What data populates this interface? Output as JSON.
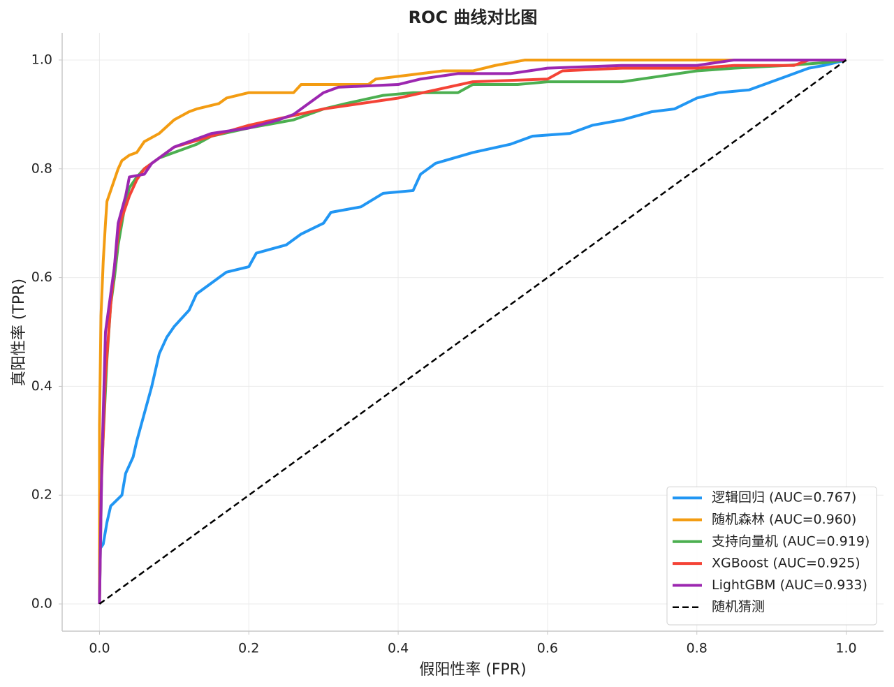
{
  "chart_data": {
    "type": "line",
    "title": "ROC 曲线对比图",
    "x_label": "假阳性率 (FPR)",
    "y_label": "真阳性率 (TPR)",
    "xlim": [
      -0.05,
      1.05
    ],
    "ylim": [
      -0.05,
      1.05
    ],
    "xticks": [
      {
        "value": 0,
        "label": "0.0"
      },
      0.2,
      0.4,
      0.6,
      0.8,
      {
        "value": 1,
        "label": "1.0"
      }
    ],
    "yticks": [
      {
        "value": 0,
        "label": "0.0"
      },
      0.2,
      0.4,
      0.6,
      0.8,
      {
        "value": 1,
        "label": "1.0"
      }
    ],
    "grid": true,
    "legend": "lower right",
    "series": [
      {
        "name": "逻辑回归 (AUC=0.767)",
        "color": "#2196f3",
        "linestyle": "solid",
        "x": [
          0,
          0,
          0.005,
          0.01,
          0.015,
          0.03,
          0.035,
          0.045,
          0.05,
          0.06,
          0.07,
          0.08,
          0.09,
          0.1,
          0.12,
          0.13,
          0.15,
          0.17,
          0.2,
          0.21,
          0.25,
          0.27,
          0.3,
          0.31,
          0.35,
          0.38,
          0.42,
          0.43,
          0.45,
          0.5,
          0.55,
          0.58,
          0.63,
          0.66,
          0.7,
          0.74,
          0.77,
          0.8,
          0.83,
          0.87,
          0.9,
          0.92,
          0.95,
          0.97,
          1
        ],
        "values": [
          0,
          0.1,
          0.11,
          0.15,
          0.18,
          0.2,
          0.24,
          0.27,
          0.3,
          0.35,
          0.4,
          0.46,
          0.49,
          0.51,
          0.54,
          0.57,
          0.59,
          0.61,
          0.62,
          0.645,
          0.66,
          0.68,
          0.7,
          0.72,
          0.73,
          0.755,
          0.76,
          0.79,
          0.81,
          0.83,
          0.845,
          0.86,
          0.865,
          0.88,
          0.89,
          0.905,
          0.91,
          0.93,
          0.94,
          0.945,
          0.96,
          0.97,
          0.985,
          0.99,
          1
        ]
      },
      {
        "name": "随机森林 (AUC=0.960)",
        "color": "#f39c12",
        "linestyle": "solid",
        "x": [
          0,
          0,
          0.002,
          0.005,
          0.008,
          0.01,
          0.015,
          0.02,
          0.025,
          0.03,
          0.04,
          0.05,
          0.06,
          0.08,
          0.1,
          0.12,
          0.13,
          0.16,
          0.17,
          0.2,
          0.26,
          0.27,
          0.36,
          0.37,
          0.4,
          0.46,
          0.5,
          0.53,
          0.57,
          1
        ],
        "values": [
          0,
          0.33,
          0.53,
          0.63,
          0.7,
          0.74,
          0.76,
          0.78,
          0.8,
          0.815,
          0.825,
          0.83,
          0.85,
          0.865,
          0.89,
          0.905,
          0.91,
          0.92,
          0.93,
          0.94,
          0.94,
          0.955,
          0.955,
          0.965,
          0.97,
          0.98,
          0.98,
          0.99,
          1,
          1
        ]
      },
      {
        "name": "支持向量机 (AUC=0.919)",
        "color": "#4caf50",
        "linestyle": "solid",
        "x": [
          0,
          0.003,
          0.01,
          0.015,
          0.02,
          0.025,
          0.03,
          0.035,
          0.04,
          0.05,
          0.06,
          0.08,
          0.1,
          0.13,
          0.15,
          0.2,
          0.26,
          0.3,
          0.33,
          0.38,
          0.42,
          0.48,
          0.5,
          0.56,
          0.6,
          0.7,
          0.75,
          0.8,
          0.85,
          0.92,
          0.97,
          1
        ],
        "values": [
          0,
          0.25,
          0.45,
          0.55,
          0.6,
          0.66,
          0.7,
          0.74,
          0.765,
          0.785,
          0.8,
          0.82,
          0.83,
          0.845,
          0.86,
          0.875,
          0.89,
          0.91,
          0.92,
          0.935,
          0.94,
          0.94,
          0.955,
          0.955,
          0.96,
          0.96,
          0.97,
          0.98,
          0.985,
          0.99,
          0.995,
          1
        ]
      },
      {
        "name": "XGBoost (AUC=0.925)",
        "color": "#f44336",
        "linestyle": "solid",
        "x": [
          0,
          0.002,
          0.008,
          0.015,
          0.02,
          0.025,
          0.03,
          0.04,
          0.05,
          0.06,
          0.08,
          0.1,
          0.15,
          0.2,
          0.25,
          0.3,
          0.35,
          0.4,
          0.45,
          0.5,
          0.6,
          0.62,
          0.7,
          0.8,
          0.85,
          0.93,
          0.95,
          1
        ],
        "values": [
          0,
          0.2,
          0.42,
          0.55,
          0.62,
          0.68,
          0.71,
          0.75,
          0.78,
          0.8,
          0.82,
          0.84,
          0.86,
          0.88,
          0.895,
          0.91,
          0.92,
          0.93,
          0.945,
          0.96,
          0.965,
          0.98,
          0.985,
          0.985,
          0.99,
          0.99,
          1,
          1
        ]
      },
      {
        "name": "LightGBM (AUC=0.933)",
        "color": "#9c27b0",
        "linestyle": "solid",
        "x": [
          0,
          0.003,
          0.008,
          0.015,
          0.02,
          0.025,
          0.035,
          0.04,
          0.06,
          0.07,
          0.1,
          0.12,
          0.15,
          0.2,
          0.24,
          0.26,
          0.28,
          0.3,
          0.32,
          0.4,
          0.43,
          0.48,
          0.55,
          0.6,
          0.7,
          0.8,
          0.85,
          1
        ],
        "values": [
          0,
          0.25,
          0.5,
          0.57,
          0.62,
          0.7,
          0.75,
          0.785,
          0.79,
          0.81,
          0.84,
          0.85,
          0.865,
          0.875,
          0.89,
          0.9,
          0.92,
          0.94,
          0.95,
          0.955,
          0.965,
          0.975,
          0.975,
          0.985,
          0.99,
          0.99,
          1,
          1
        ]
      },
      {
        "name": "随机猜测",
        "color": "#000000",
        "linestyle": "dashed",
        "x": [
          0,
          1
        ],
        "values": [
          0,
          1
        ]
      }
    ]
  }
}
